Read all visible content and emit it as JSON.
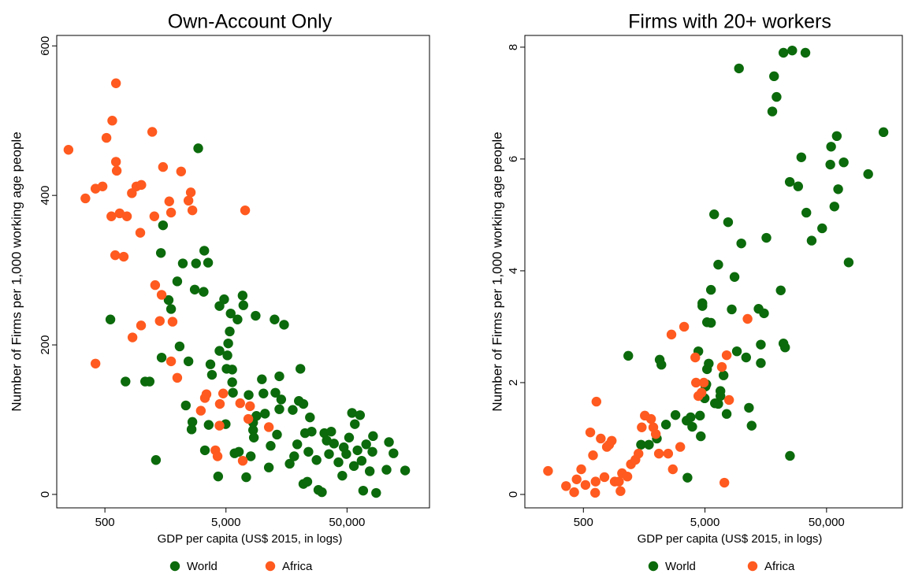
{
  "chart_data": [
    {
      "type": "scatter",
      "title": "Own-Account Only",
      "x_label": "GDP per capita (US$ 2015, in logs)",
      "y_label": "Number of Firms per 1,000 working age people",
      "log_x": true,
      "xlim": [
        200,
        240000
      ],
      "ylim": [
        -18,
        614
      ],
      "xticks": [
        500,
        {
          "value": 5000,
          "label": "5,000"
        },
        {
          "value": 50000,
          "label": "50,000"
        }
      ],
      "yticks": [
        0,
        200,
        400,
        600
      ],
      "series": [
        {
          "name": "World",
          "color": "#0b6a0b",
          "x": [
            555,
            740,
            1075,
            1170,
            1320,
            1450,
            1510,
            1470,
            1680,
            1760,
            1980,
            2070,
            2200,
            2330,
            2450,
            2600,
            2640,
            2830,
            2950,
            2760,
            3310,
            3270,
            3350,
            3560,
            3600,
            3720,
            3830,
            4310,
            4420,
            4420,
            4830,
            4970,
            5060,
            5140,
            5220,
            5370,
            5470,
            5630,
            5630,
            5710,
            5890,
            6230,
            6390,
            6860,
            6960,
            7350,
            7700,
            8010,
            8380,
            8380,
            8500,
            8790,
            8920,
            9900,
            10200,
            10500,
            11300,
            11700,
            12600,
            12800,
            13200,
            13800,
            13800,
            14300,
            15100,
            16800,
            17800,
            18300,
            19400,
            20000,
            20600,
            21800,
            21800,
            22500,
            23500,
            24000,
            24700,
            25500,
            28000,
            29000,
            31000,
            32500,
            34000,
            35500,
            37000,
            39000,
            42500,
            45700,
            47000,
            49300,
            52000,
            55000,
            57000,
            58000,
            61000,
            64000,
            66000,
            68000,
            72000,
            77000,
            81000,
            82000,
            87000,
            106000,
            111000,
            121000,
            151000
          ],
          "values": [
            234,
            151,
            151,
            151,
            46,
            323,
            360,
            183,
            260,
            248,
            285,
            198,
            309,
            119,
            178,
            87,
            97,
            309,
            463,
            274,
            326,
            271,
            59,
            310,
            93,
            174,
            160,
            24,
            252,
            192,
            261,
            94,
            168,
            186,
            202,
            218,
            242,
            167,
            150,
            136,
            55,
            234,
            57,
            266,
            253,
            23,
            133,
            51,
            86,
            96,
            76,
            239,
            105,
            154,
            135,
            108,
            36,
            65,
            234,
            136,
            80,
            158,
            114,
            127,
            227,
            41,
            113,
            51,
            67,
            125,
            168,
            121,
            14,
            82,
            17,
            57,
            103,
            84,
            46,
            6,
            3,
            82,
            72,
            54,
            84,
            68,
            43,
            25,
            63,
            54,
            76,
            109,
            38,
            94,
            59,
            106,
            45,
            5,
            67,
            31,
            57,
            78,
            2,
            33,
            70,
            55,
            32
          ]
        },
        {
          "name": "Africa",
          "color": "#ff5a1f",
          "x": [
            250,
            345,
            418,
            478,
            515,
            565,
            575,
            617,
            626,
            617,
            608,
            662,
            715,
            760,
            418,
            845,
            835,
            910,
            980,
            995,
            1000,
            1230,
            1280,
            1300,
            1420,
            1470,
            1510,
            1700,
            1760,
            1810,
            1760,
            1980,
            2130,
            2450,
            2560,
            2640,
            3100,
            3350,
            3450,
            4090,
            4260,
            4450,
            4420,
            4740,
            6550,
            6880,
            7200,
            7900,
            7650,
            11300
          ],
          "values": [
            461,
            396,
            409,
            412,
            477,
            372,
            500,
            445,
            433,
            550,
            320,
            376,
            318,
            372,
            175,
            210,
            403,
            412,
            350,
            226,
            414,
            485,
            372,
            280,
            232,
            267,
            438,
            392,
            377,
            231,
            178,
            156,
            432,
            393,
            404,
            380,
            112,
            129,
            134,
            59,
            51,
            121,
            92,
            135,
            122,
            45,
            380,
            118,
            101,
            90
          ]
        }
      ]
    },
    {
      "type": "scatter",
      "title": "Firms with 20+ workers",
      "x_label": "GDP per capita (US$ 2015, in logs)",
      "y_label": "Number of Firms per 1,000 working age people",
      "log_x": true,
      "xlim": [
        165,
        210000
      ],
      "ylim": [
        -0.24,
        8.21
      ],
      "xticks": [
        500,
        {
          "value": 5000,
          "label": "5,000"
        },
        {
          "value": 50000,
          "label": "50,000"
        }
      ],
      "yticks": [
        0,
        2,
        4,
        6,
        8
      ],
      "series": [
        {
          "name": "World",
          "color": "#0b6a0b",
          "x": [
            1170,
            1490,
            1730,
            2010,
            2120,
            2190,
            2390,
            2860,
            3530,
            3590,
            3810,
            3930,
            4410,
            4550,
            4620,
            4760,
            4760,
            4970,
            5050,
            5130,
            5200,
            5200,
            5370,
            5600,
            5600,
            5950,
            6040,
            6430,
            6430,
            6700,
            6700,
            7110,
            7540,
            7750,
            8300,
            9150,
            8750,
            9520,
            9950,
            10900,
            11500,
            12100,
            13800,
            14400,
            14400,
            15300,
            16000,
            17900,
            18500,
            19400,
            21000,
            22100,
            22100,
            22800,
            24900,
            25000,
            26100,
            29200,
            31000,
            33500,
            34100,
            37700,
            46000,
            53700,
            54500,
            58000,
            60700,
            62300,
            69200,
            76000,
            110000,
            147000
          ],
          "values": [
            2.48,
            0.89,
            0.89,
            1.0,
            2.41,
            2.32,
            1.25,
            1.42,
            1.32,
            0.3,
            1.38,
            1.21,
            2.56,
            1.41,
            1.04,
            3.42,
            3.37,
            1.72,
            1.93,
            1.97,
            3.08,
            2.24,
            2.34,
            3.07,
            3.66,
            5.01,
            1.63,
            4.11,
            1.62,
            1.85,
            1.76,
            2.13,
            1.44,
            4.87,
            3.31,
            2.56,
            3.89,
            7.62,
            4.49,
            2.45,
            1.55,
            1.23,
            3.32,
            2.35,
            2.68,
            3.24,
            4.59,
            6.85,
            7.48,
            7.11,
            3.65,
            2.7,
            7.9,
            2.63,
            5.59,
            0.69,
            7.94,
            5.51,
            6.03,
            7.9,
            5.04,
            4.54,
            4.76,
            5.9,
            6.22,
            5.15,
            6.41,
            5.46,
            5.94,
            4.15,
            5.73,
            6.48
          ]
        },
        {
          "name": "Africa",
          "color": "#ff5a1f",
          "x": [
            256,
            360,
            420,
            440,
            480,
            520,
            570,
            600,
            625,
            630,
            640,
            695,
            745,
            780,
            815,
            855,
            905,
            980,
            1010,
            1040,
            1150,
            1230,
            1340,
            1420,
            1510,
            1600,
            1800,
            1880,
            1970,
            2090,
            2490,
            2720,
            2650,
            3130,
            3370,
            4160,
            4220,
            4410,
            4680,
            4890,
            6880,
            7220,
            7540,
            7890,
            11200
          ],
          "values": [
            0.42,
            0.15,
            0.04,
            0.27,
            0.45,
            0.17,
            1.11,
            0.7,
            0.03,
            0.23,
            1.66,
            1.0,
            0.31,
            0.85,
            0.89,
            0.96,
            0.23,
            0.23,
            0.06,
            0.38,
            0.32,
            0.54,
            0.62,
            0.73,
            1.2,
            1.41,
            1.35,
            1.2,
            1.08,
            0.73,
            0.73,
            0.45,
            2.86,
            0.85,
            3.0,
            2.45,
            2.0,
            1.76,
            1.82,
            2.0,
            2.28,
            0.21,
            2.49,
            1.69,
            3.14
          ]
        }
      ]
    }
  ]
}
